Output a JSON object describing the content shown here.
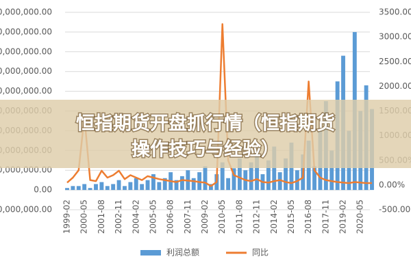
{
  "chart_data": {
    "type": "bar-line",
    "categories": [
      "1999-02",
      null,
      null,
      "2000-05",
      null,
      null,
      "2001-08",
      null,
      null,
      "2002-11",
      null,
      null,
      "2004-02",
      null,
      null,
      "2005-05",
      null,
      null,
      "2006-08",
      null,
      null,
      "2007-11",
      null,
      null,
      "2009-02",
      null,
      null,
      "2010-05",
      null,
      null,
      "2011-08",
      null,
      null,
      "2012-11",
      null,
      null,
      "2014-02",
      null,
      null,
      "2015-05",
      null,
      null,
      "2016-08",
      null,
      null,
      "2017-11",
      null,
      null,
      "2019-02",
      null,
      null,
      "2020-05",
      null,
      null
    ],
    "series": [
      {
        "name": "利润总额",
        "color": "#5b9bd5",
        "type": "bar",
        "values": [
          1000000,
          2000000,
          2000000,
          3000000,
          1000000,
          3000000,
          4000000,
          2000000,
          3000000,
          5000000,
          2000000,
          4000000,
          6000000,
          3000000,
          5000000,
          8000000,
          4000000,
          6000000,
          9000000,
          5000000,
          7000000,
          10000000,
          6000000,
          9000000,
          12000000,
          3000000,
          8000000,
          14000000,
          6000000,
          11000000,
          16000000,
          10000000,
          14000000,
          20000000,
          8000000,
          15000000,
          22000000,
          9000000,
          16000000,
          24000000,
          10000000,
          18000000,
          25000000,
          12000000,
          30000000,
          45000000,
          20000000,
          55000000,
          68000000,
          30000000,
          80000000,
          40000000,
          53000000,
          41000000
        ]
      },
      {
        "name": "同比",
        "color": "#ed7d31",
        "type": "line",
        "axis": "y2",
        "values": [
          50,
          150,
          300,
          1380,
          100,
          80,
          290,
          150,
          200,
          290,
          120,
          200,
          150,
          100,
          180,
          150,
          120,
          100,
          80,
          60,
          100,
          90,
          80,
          60,
          50,
          -20,
          60,
          3260,
          500,
          200,
          150,
          100,
          80,
          120,
          60,
          50,
          80,
          100,
          60,
          40,
          80,
          150,
          2100,
          300,
          150,
          100,
          80,
          60,
          50,
          40,
          60,
          50,
          40,
          40
        ]
      }
    ],
    "ylim": [
      -10000000,
      90000000
    ],
    "yticks": [
      {
        "value": -10000000,
        "label": "0,000,000.00"
      },
      {
        "value": 0,
        "label": "0.00"
      },
      {
        "value": 10000000,
        "label": "0,000,000.00"
      },
      {
        "value": 20000000,
        "label": "0,000,000.00"
      },
      {
        "value": 30000000,
        "label": "0,000,000.00"
      },
      {
        "value": 40000000,
        "label": "0,000,000.00"
      },
      {
        "value": 50000000,
        "label": "0,000,000.00"
      },
      {
        "value": 60000000,
        "label": "0,000,000.00"
      },
      {
        "value": 70000000,
        "label": "0,000,000.00"
      },
      {
        "value": 80000000,
        "label": "0,000,000.00"
      },
      {
        "value": 90000000,
        "label": "0,000,000.00"
      }
    ],
    "y2lim": [
      -500,
      3500
    ],
    "y2ticks": [
      {
        "value": -500,
        "label": "-500.00%"
      },
      {
        "value": 0,
        "label": "0.00%"
      },
      {
        "value": 500,
        "label": "500.00%"
      },
      {
        "value": 1000,
        "label": "1000.00%"
      },
      {
        "value": 1500,
        "label": "1500.00%"
      },
      {
        "value": 2000,
        "label": "2000.00%"
      },
      {
        "value": 2500,
        "label": "2500.00%"
      },
      {
        "value": 3000,
        "label": "3000.00%"
      },
      {
        "value": 3500,
        "label": "3500.00%"
      }
    ],
    "grid": true,
    "legend": "bottom"
  },
  "banner": {
    "lines": [
      "恒指期货开盘抓行情（恒指期货",
      "操作技巧与经验）"
    ]
  }
}
